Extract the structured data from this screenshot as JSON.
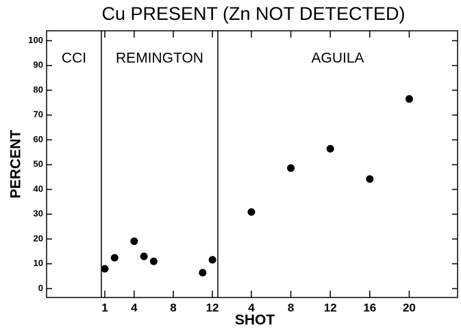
{
  "chart_data": {
    "type": "scatter",
    "title": "Cu PRESENT (Zn NOT DETECTED)",
    "xlabel": "SHOT",
    "ylabel": "PERCENT",
    "ylim": [
      -3.6,
      104
    ],
    "yticks": [
      0,
      10,
      20,
      30,
      40,
      50,
      60,
      70,
      80,
      90,
      100
    ],
    "color": "#000000",
    "panels": [
      {
        "name": "CCI",
        "x": [],
        "values": []
      },
      {
        "name": "REMINGTON",
        "xlim": [
          0.65,
          12.55
        ],
        "xticks": [
          1,
          4,
          8,
          12
        ],
        "x": [
          1,
          2,
          4,
          5,
          6,
          11,
          12
        ],
        "values": [
          8,
          12.4,
          19.1,
          13,
          11,
          6.4,
          11.6
        ]
      },
      {
        "name": "AGUILA",
        "xlim": [
          0.6,
          24.9
        ],
        "xticks": [
          4,
          8,
          12,
          16,
          20
        ],
        "x": [
          4,
          8,
          12,
          16,
          20
        ],
        "values": [
          30.9,
          48.6,
          56.4,
          44.2,
          76.5
        ]
      }
    ]
  }
}
